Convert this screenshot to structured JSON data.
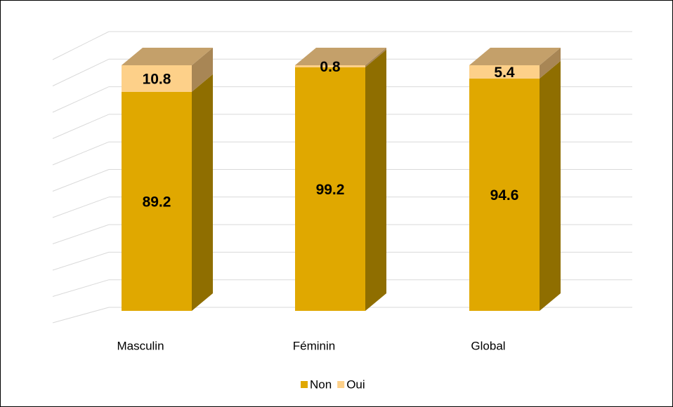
{
  "chart_data": {
    "type": "bar",
    "stacked": true,
    "three_d": true,
    "categories": [
      "Masculin",
      "Féminin",
      "Global"
    ],
    "series": [
      {
        "name": "Non",
        "color": "#e0a800",
        "side_color": "#8f6e00",
        "top_color": "#b8900a",
        "values": [
          89.2,
          99.2,
          94.6
        ]
      },
      {
        "name": "Oui",
        "color": "#fdd089",
        "side_color": "#a88655",
        "top_color": "#c4a06a",
        "values": [
          10.8,
          0.8,
          5.4
        ]
      }
    ],
    "ylim": [
      0,
      100
    ],
    "yticks": [
      0,
      10,
      20,
      30,
      40,
      50,
      60,
      70,
      80,
      90,
      100
    ],
    "grid": true,
    "legend": "bottom"
  }
}
